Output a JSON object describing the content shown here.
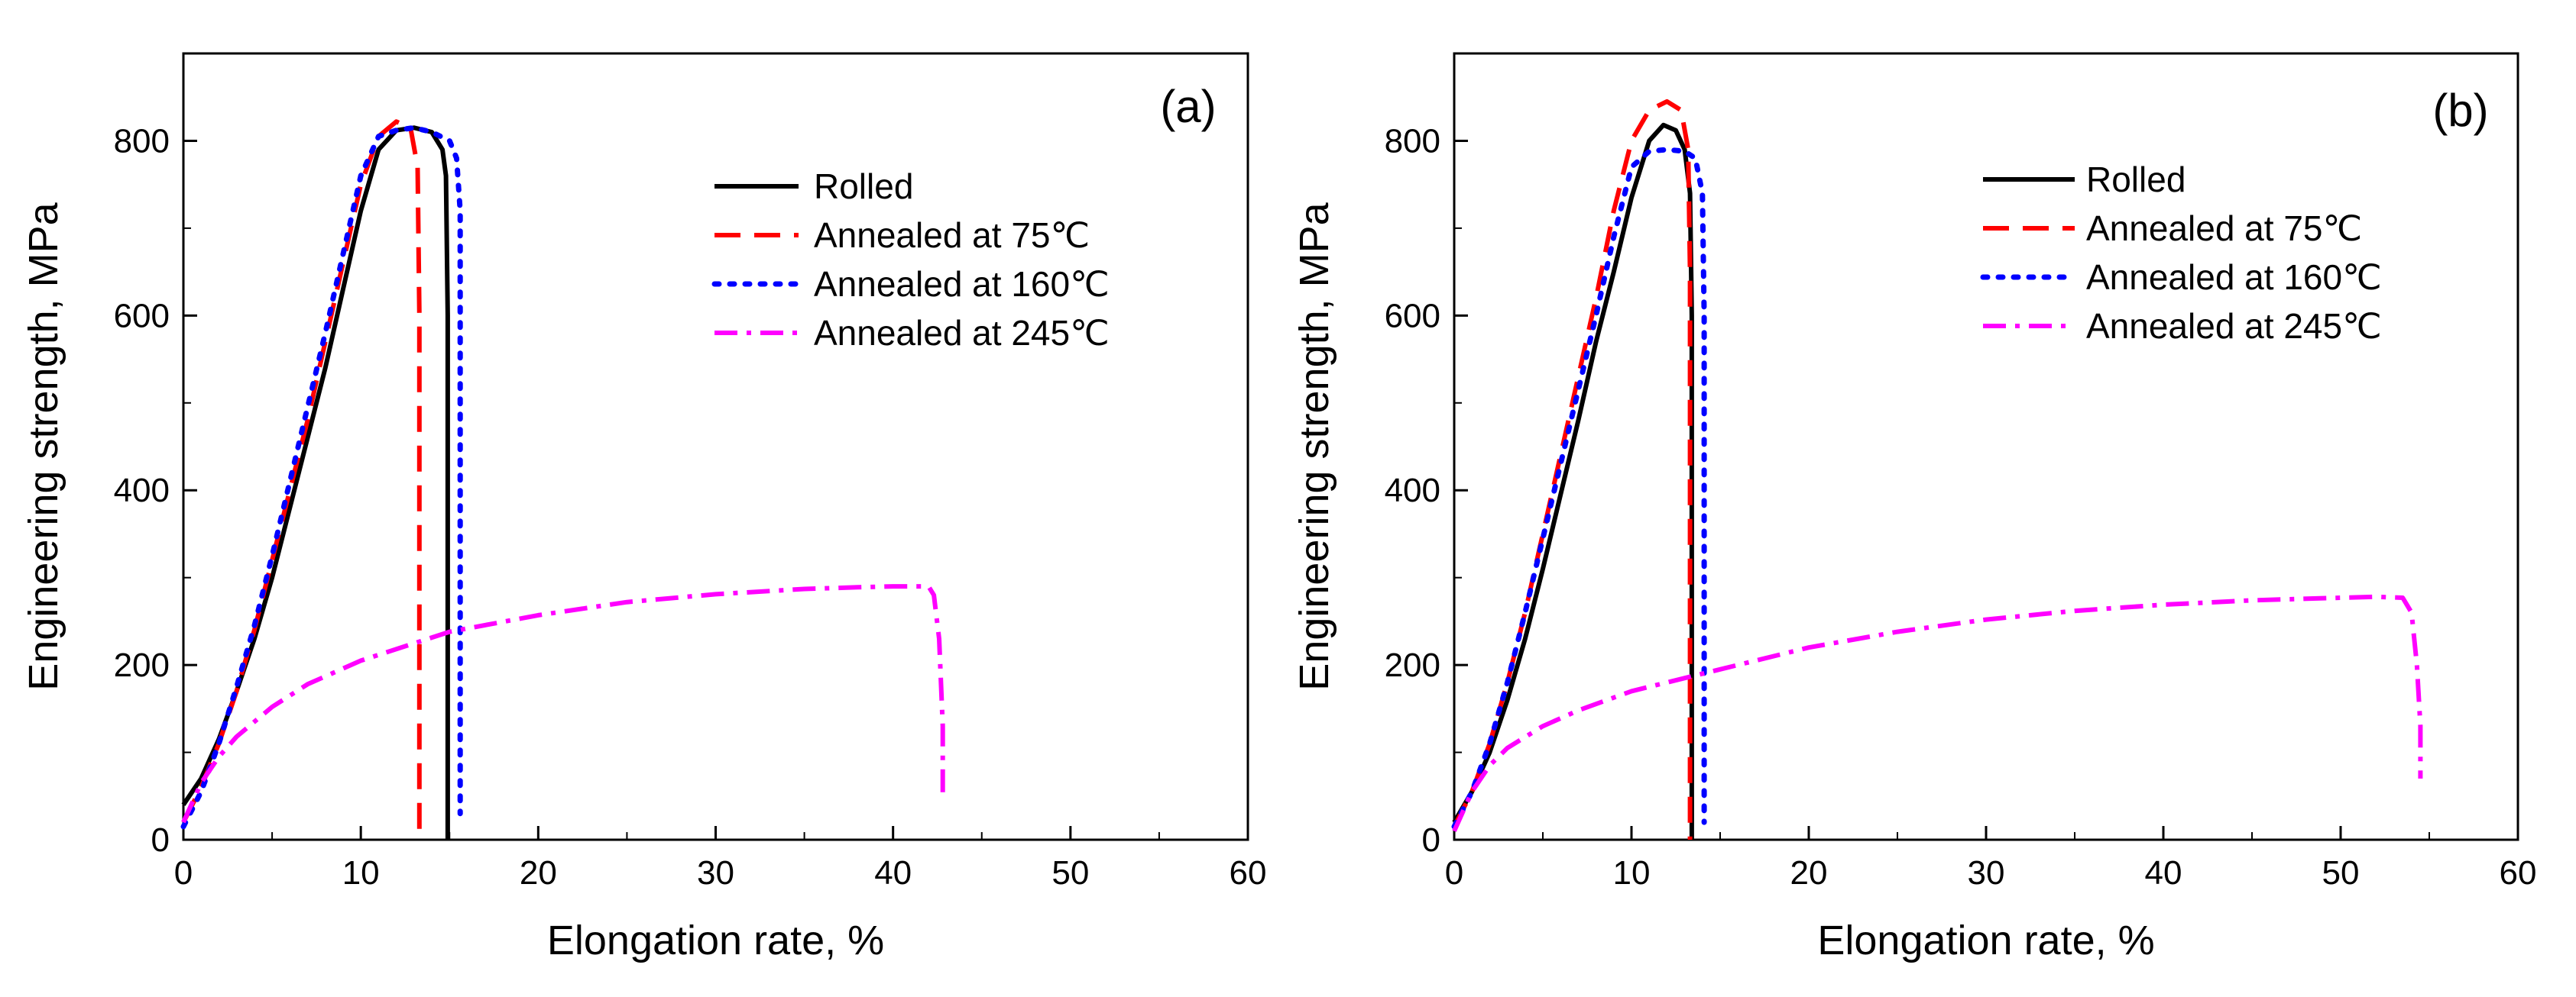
{
  "chart_data": [
    {
      "type": "line",
      "annotation": "(a)",
      "xlabel": "Elongation rate, %",
      "ylabel": "Engineering strength, MPa",
      "xlim": [
        0,
        60
      ],
      "ylim": [
        0,
        900
      ],
      "xticks": [
        0,
        10,
        20,
        30,
        40,
        50,
        60
      ],
      "yticks": [
        0,
        200,
        400,
        600,
        800
      ],
      "grid": false,
      "legend_position": "upper-right",
      "series": [
        {
          "name": "Rolled",
          "color": "#000000",
          "style": "solid",
          "points": [
            [
              0,
              40
            ],
            [
              1,
              70
            ],
            [
              2,
              115
            ],
            [
              3,
              170
            ],
            [
              4,
              230
            ],
            [
              5,
              300
            ],
            [
              6,
              380
            ],
            [
              7,
              460
            ],
            [
              8,
              540
            ],
            [
              9,
              630
            ],
            [
              10,
              720
            ],
            [
              11,
              790
            ],
            [
              12,
              812
            ],
            [
              13,
              815
            ],
            [
              14,
              810
            ],
            [
              14.6,
              790
            ],
            [
              14.8,
              760
            ],
            [
              14.9,
              600
            ],
            [
              14.9,
              300
            ],
            [
              14.9,
              0
            ]
          ]
        },
        {
          "name": "Annealed at 75℃",
          "color": "#ff0000",
          "style": "dashed",
          "points": [
            [
              0,
              20
            ],
            [
              1,
              60
            ],
            [
              2,
              110
            ],
            [
              3,
              170
            ],
            [
              4,
              240
            ],
            [
              5,
              320
            ],
            [
              6,
              400
            ],
            [
              7,
              480
            ],
            [
              8,
              570
            ],
            [
              9,
              660
            ],
            [
              10,
              750
            ],
            [
              11,
              805
            ],
            [
              12,
              822
            ],
            [
              12.8,
              815
            ],
            [
              13.2,
              770
            ],
            [
              13.3,
              600
            ],
            [
              13.3,
              300
            ],
            [
              13.3,
              0
            ]
          ]
        },
        {
          "name": "Annealed at 160℃",
          "color": "#0000ff",
          "style": "dotted",
          "points": [
            [
              0,
              15
            ],
            [
              1,
              55
            ],
            [
              2,
              110
            ],
            [
              3,
              175
            ],
            [
              4,
              245
            ],
            [
              5,
              325
            ],
            [
              6,
              410
            ],
            [
              7,
              495
            ],
            [
              8,
              580
            ],
            [
              9,
              670
            ],
            [
              10,
              760
            ],
            [
              11,
              805
            ],
            [
              12,
              812
            ],
            [
              13,
              815
            ],
            [
              14,
              810
            ],
            [
              15,
              800
            ],
            [
              15.4,
              780
            ],
            [
              15.6,
              720
            ],
            [
              15.6,
              400
            ],
            [
              15.6,
              30
            ]
          ]
        },
        {
          "name": "Annealed at 245℃",
          "color": "#ff00ff",
          "style": "dashdot",
          "points": [
            [
              0,
              20
            ],
            [
              1,
              65
            ],
            [
              2,
              95
            ],
            [
              3,
              118
            ],
            [
              5,
              152
            ],
            [
              7,
              178
            ],
            [
              10,
              205
            ],
            [
              15,
              238
            ],
            [
              20,
              257
            ],
            [
              25,
              272
            ],
            [
              30,
              281
            ],
            [
              35,
              287
            ],
            [
              38,
              289
            ],
            [
              40,
              290
            ],
            [
              41,
              290
            ],
            [
              42,
              290
            ],
            [
              42.3,
              280
            ],
            [
              42.6,
              230
            ],
            [
              42.8,
              130
            ],
            [
              42.8,
              45
            ]
          ]
        }
      ]
    },
    {
      "type": "line",
      "annotation": "(b)",
      "xlabel": "Elongation rate, %",
      "ylabel": "Engineering strength, MPa",
      "xlim": [
        0,
        60
      ],
      "ylim": [
        0,
        900
      ],
      "xticks": [
        0,
        10,
        20,
        30,
        40,
        50,
        60
      ],
      "yticks": [
        0,
        200,
        400,
        600,
        800
      ],
      "grid": false,
      "legend_position": "upper-right",
      "series": [
        {
          "name": "Rolled",
          "color": "#000000",
          "style": "solid",
          "points": [
            [
              0,
              20
            ],
            [
              1,
              55
            ],
            [
              2,
              100
            ],
            [
              3,
              160
            ],
            [
              4,
              230
            ],
            [
              5,
              310
            ],
            [
              6,
              395
            ],
            [
              7,
              480
            ],
            [
              8,
              570
            ],
            [
              9,
              650
            ],
            [
              10,
              735
            ],
            [
              11,
              800
            ],
            [
              11.8,
              818
            ],
            [
              12.5,
              812
            ],
            [
              13,
              790
            ],
            [
              13.3,
              740
            ],
            [
              13.4,
              600
            ],
            [
              13.4,
              300
            ],
            [
              13.4,
              0
            ]
          ]
        },
        {
          "name": "Annealed at 75℃",
          "color": "#ff0000",
          "style": "dashed",
          "points": [
            [
              0,
              15
            ],
            [
              1,
              55
            ],
            [
              2,
              110
            ],
            [
              3,
              180
            ],
            [
              4,
              260
            ],
            [
              5,
              350
            ],
            [
              6,
              440
            ],
            [
              7,
              530
            ],
            [
              8,
              620
            ],
            [
              9,
              720
            ],
            [
              10,
              800
            ],
            [
              11,
              835
            ],
            [
              12,
              845
            ],
            [
              12.8,
              835
            ],
            [
              13.2,
              790
            ],
            [
              13.3,
              650
            ],
            [
              13.3,
              300
            ],
            [
              13.3,
              0
            ]
          ]
        },
        {
          "name": "Annealed at 160℃",
          "color": "#0000ff",
          "style": "dotted",
          "points": [
            [
              0,
              15
            ],
            [
              1,
              55
            ],
            [
              2,
              110
            ],
            [
              3,
              180
            ],
            [
              4,
              260
            ],
            [
              5,
              345
            ],
            [
              6,
              430
            ],
            [
              7,
              515
            ],
            [
              8,
              600
            ],
            [
              9,
              690
            ],
            [
              10,
              770
            ],
            [
              11,
              788
            ],
            [
              12,
              790
            ],
            [
              13,
              788
            ],
            [
              13.6,
              780
            ],
            [
              14,
              740
            ],
            [
              14.1,
              600
            ],
            [
              14.1,
              300
            ],
            [
              14.1,
              20
            ]
          ]
        },
        {
          "name": "Annealed at 245℃",
          "color": "#ff00ff",
          "style": "dashdot",
          "points": [
            [
              0,
              10
            ],
            [
              1,
              55
            ],
            [
              2,
              85
            ],
            [
              3,
              105
            ],
            [
              5,
              130
            ],
            [
              7,
              148
            ],
            [
              10,
              170
            ],
            [
              15,
              195
            ],
            [
              20,
              220
            ],
            [
              25,
              238
            ],
            [
              30,
              252
            ],
            [
              35,
              262
            ],
            [
              40,
              269
            ],
            [
              45,
              274
            ],
            [
              50,
              277
            ],
            [
              52,
              278
            ],
            [
              53.5,
              277
            ],
            [
              54,
              260
            ],
            [
              54.3,
              200
            ],
            [
              54.5,
              130
            ],
            [
              54.5,
              70
            ]
          ]
        }
      ]
    }
  ]
}
